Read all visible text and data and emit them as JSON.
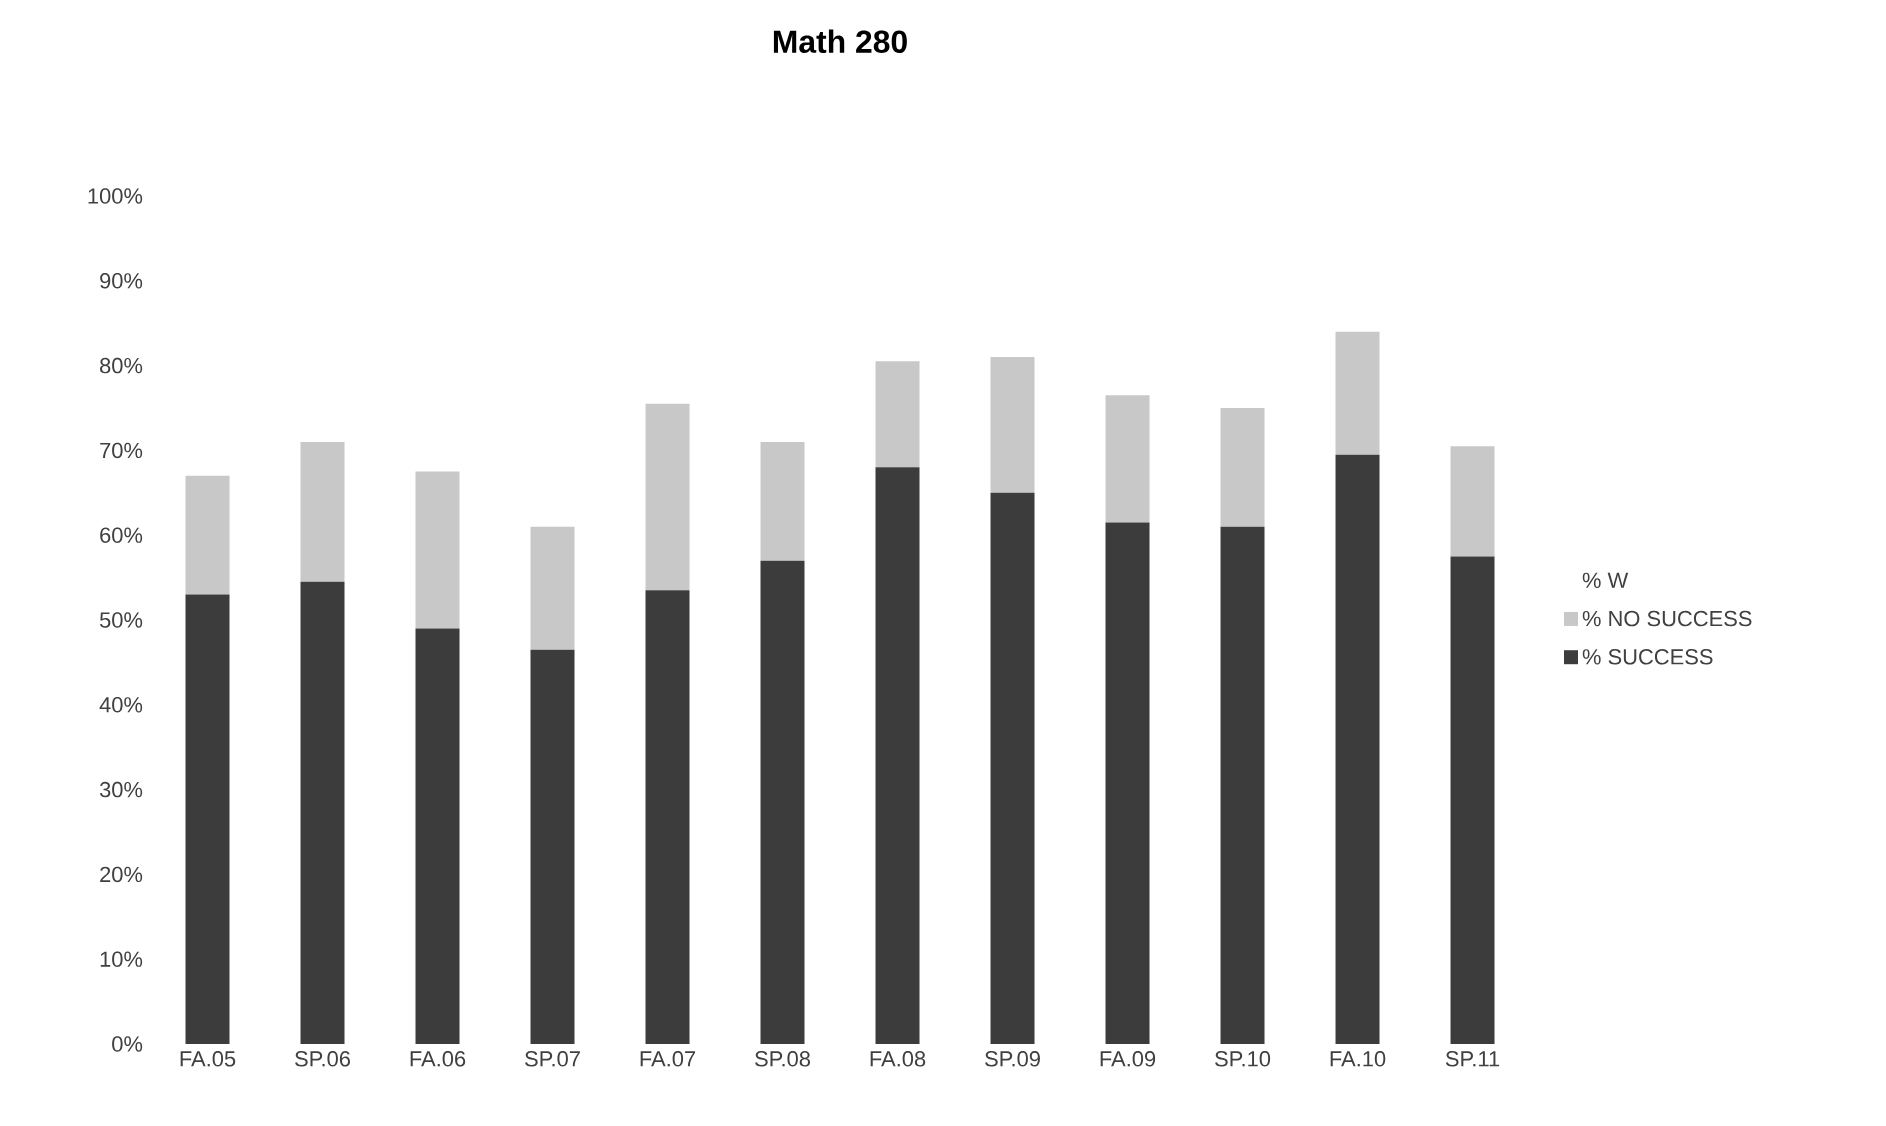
{
  "chart_data": {
    "type": "bar",
    "title": "Math 280",
    "stacked": true,
    "categories": [
      "FA.05",
      "SP.06",
      "FA.06",
      "SP.07",
      "FA.07",
      "SP.08",
      "FA.08",
      "SP.09",
      "FA.09",
      "SP.10",
      "FA.10",
      "SP.11"
    ],
    "series": [
      {
        "name": "% SUCCESS",
        "color": "#3c3c3c",
        "values": [
          53,
          54.5,
          49,
          46.5,
          53.5,
          57,
          68,
          65,
          61.5,
          61,
          69.5,
          57.5
        ]
      },
      {
        "name": "% NO SUCCESS",
        "color": "#c8c8c8",
        "values": [
          14,
          16.5,
          18.5,
          14.5,
          22,
          14,
          12.5,
          16,
          15,
          14,
          14.5,
          13
        ]
      },
      {
        "name": "% W",
        "values": [
          null,
          null,
          null,
          null,
          null,
          null,
          null,
          null,
          null,
          null,
          null,
          null
        ]
      }
    ],
    "ylim": [
      0,
      100
    ],
    "yticks": [
      {
        "value": 0,
        "label": "0%"
      },
      {
        "value": 10,
        "label": "10%"
      },
      {
        "value": 20,
        "label": "20%"
      },
      {
        "value": 30,
        "label": "30%"
      },
      {
        "value": 40,
        "label": "40%"
      },
      {
        "value": 50,
        "label": "50%"
      },
      {
        "value": 60,
        "label": "60%"
      },
      {
        "value": 70,
        "label": "70%"
      },
      {
        "value": 80,
        "label": "80%"
      },
      {
        "value": 90,
        "label": "90%"
      },
      {
        "value": 100,
        "label": "100%"
      }
    ],
    "legend": "right"
  }
}
